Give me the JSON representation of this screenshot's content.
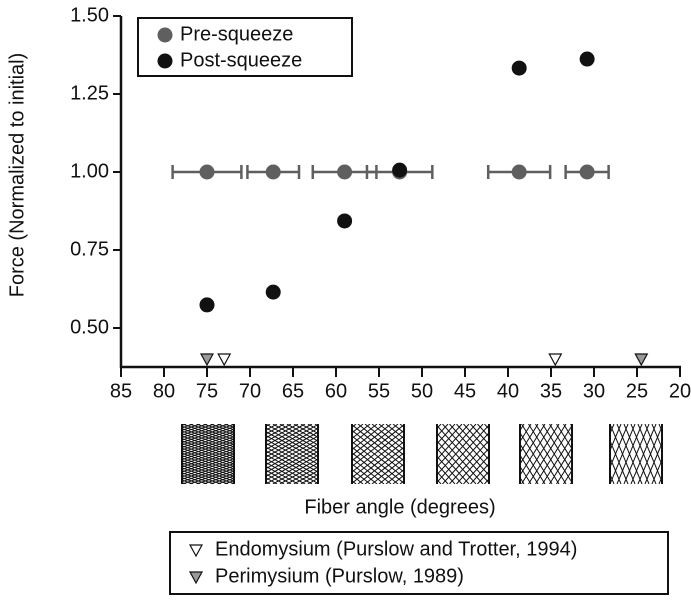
{
  "chart_data": {
    "type": "scatter",
    "xlabel": "Fiber angle (degrees)",
    "ylabel": "Force (Normalized to initial)",
    "xlim": [
      85,
      20
    ],
    "xticks": [
      85,
      80,
      75,
      70,
      65,
      60,
      55,
      50,
      45,
      40,
      35,
      30,
      25,
      20
    ],
    "ylim": [
      0.375,
      1.5
    ],
    "yticks": [
      {
        "value": 0.5,
        "label": "0.50"
      },
      {
        "value": 0.75,
        "label": "0.75"
      },
      {
        "value": 1.0,
        "label": "1.00"
      },
      {
        "value": 1.25,
        "label": "1.25"
      },
      {
        "value": 1.5,
        "label": "1.50"
      }
    ],
    "series": [
      {
        "name": "Pre-squeeze",
        "color": "#5f5f5f",
        "x": [
          75,
          67.3,
          59,
          52.6,
          38.7,
          30.8
        ],
        "values": [
          1,
          1,
          1,
          1,
          1,
          1
        ],
        "xerr": [
          4,
          3,
          3.7,
          3.8,
          3.6,
          2.5
        ]
      },
      {
        "name": "Post-squeeze",
        "color": "#111111",
        "x": [
          75,
          67.3,
          59,
          52.6,
          38.7,
          30.8
        ],
        "values": [
          0.574,
          0.615,
          0.843,
          1.006,
          1.333,
          1.362
        ]
      }
    ],
    "markers": [
      {
        "name": "Endomysium (Purslow and Trotter, 1994)",
        "color": "#ffffff",
        "x": [
          73,
          34.5
        ]
      },
      {
        "name": "Perimysium (Purslow, 1989)",
        "color": "#999999",
        "x": [
          75,
          24.5
        ]
      }
    ]
  }
}
